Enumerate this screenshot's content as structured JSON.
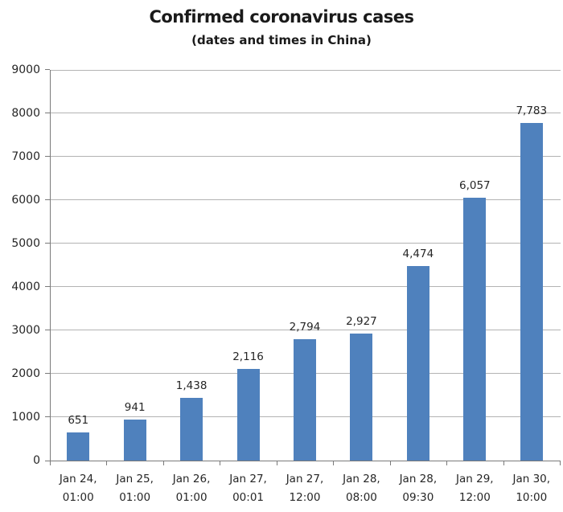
{
  "chart_data": {
    "type": "bar",
    "title": "Confirmed coronavirus cases",
    "subtitle": "(dates and times in China)",
    "categories": [
      {
        "line1": "Jan 24,",
        "line2": "01:00"
      },
      {
        "line1": "Jan 25,",
        "line2": "01:00"
      },
      {
        "line1": "Jan 26,",
        "line2": "01:00"
      },
      {
        "line1": "Jan 27,",
        "line2": "00:01"
      },
      {
        "line1": "Jan 27,",
        "line2": "12:00"
      },
      {
        "line1": "Jan 28,",
        "line2": "08:00"
      },
      {
        "line1": "Jan 28,",
        "line2": "09:30"
      },
      {
        "line1": "Jan 29,",
        "line2": "12:00"
      },
      {
        "line1": "Jan 30,",
        "line2": "10:00"
      }
    ],
    "values": [
      651,
      941,
      1438,
      2116,
      2794,
      2927,
      4474,
      6057,
      7783
    ],
    "value_labels": [
      "651",
      "941",
      "1,438",
      "2,116",
      "2,794",
      "2,927",
      "4,474",
      "6,057",
      "7,783"
    ],
    "xlabel": "",
    "ylabel": "",
    "ylim": [
      0,
      9000
    ],
    "ytick_step": 1000,
    "ytick_labels": [
      "0",
      "1000",
      "2000",
      "3000",
      "4000",
      "5000",
      "6000",
      "7000",
      "8000",
      "9000"
    ],
    "grid": "horizontal",
    "legend": "none",
    "colors": {
      "bar": "#4f81bd",
      "gridline": "#b3b3b3",
      "axis": "#7a7a7a",
      "text": "#262626",
      "background": "#ffffff"
    }
  }
}
